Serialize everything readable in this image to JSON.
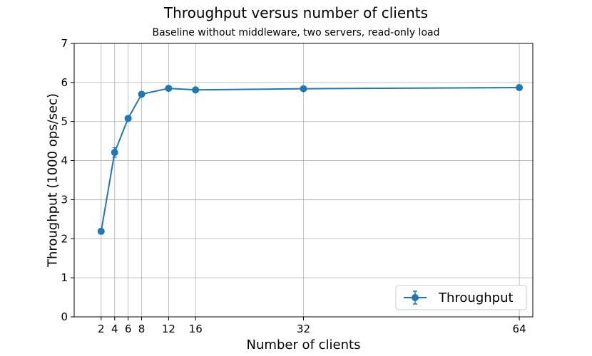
{
  "chart_data": {
    "type": "line",
    "title": "Throughput versus number of clients",
    "subtitle": "Baseline without middleware, two servers, read-only load",
    "xlabel": "Number of clients",
    "ylabel": "Throughput (1000 ops/sec)",
    "x": [
      2,
      4,
      6,
      8,
      12,
      16,
      32,
      64
    ],
    "xticks": [
      2,
      4,
      6,
      8,
      12,
      16,
      32,
      64
    ],
    "yticks": [
      0,
      1,
      2,
      3,
      4,
      5,
      6,
      7
    ],
    "xlim": [
      -2,
      66
    ],
    "ylim": [
      0,
      7
    ],
    "grid": true,
    "legend_position": "lower-right",
    "series": [
      {
        "name": "Throughput",
        "color": "#1f77b4",
        "marker": "circle",
        "error_bars": true,
        "values": [
          2.19,
          4.21,
          5.08,
          5.7,
          5.85,
          5.81,
          5.84,
          5.87
        ],
        "errors": [
          0.02,
          0.12,
          0.04,
          0.03,
          0.03,
          0.02,
          0.02,
          0.02
        ]
      }
    ]
  }
}
